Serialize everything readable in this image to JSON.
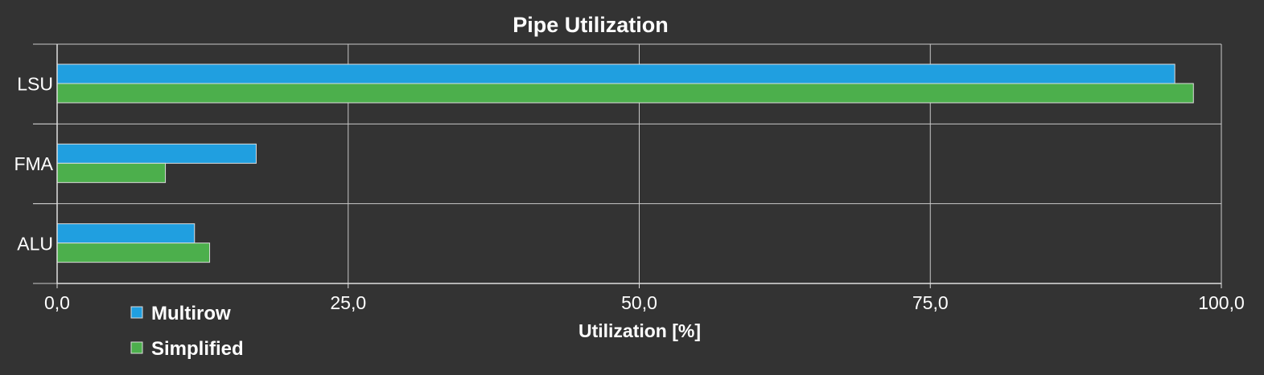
{
  "chart_data": {
    "type": "bar",
    "orientation": "horizontal",
    "title": "Pipe Utilization",
    "xlabel": "Utilization [%]",
    "ylabel": "",
    "xlim": [
      0,
      100
    ],
    "x_ticks": [
      0,
      25,
      50,
      75,
      100
    ],
    "x_tick_labels": [
      "0,0",
      "25,0",
      "50,0",
      "75,0",
      "100,0"
    ],
    "categories": [
      "LSU",
      "FMA",
      "ALU"
    ],
    "series": [
      {
        "name": "Multirow",
        "color": "#209fe0",
        "values": [
          96.0,
          17.1,
          11.8
        ]
      },
      {
        "name": "Simplified",
        "color": "#4caf4c",
        "values": [
          97.6,
          9.3,
          13.1
        ]
      }
    ],
    "grid": true,
    "legend": {
      "position": "bottom-left"
    }
  }
}
